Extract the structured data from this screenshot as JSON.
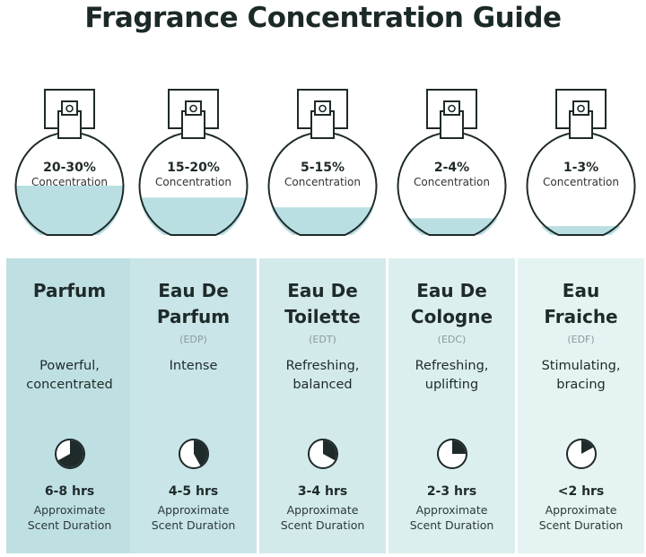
{
  "title": "Fragrance Concentration Guide",
  "concentration_label": "Concentration",
  "approx_label": [
    "Approximate",
    "Scent Duration"
  ],
  "colors": {
    "liquid": "#b9dfe2",
    "ink": "#1f2a2a"
  },
  "types": [
    {
      "name": [
        "Parfum",
        ""
      ],
      "abbr": "",
      "concentration": "20-30%",
      "fill_fraction": 0.5,
      "desc": [
        "Powerful,",
        "concentrated"
      ],
      "duration": "6-8 hrs",
      "clock_fraction": 0.67,
      "bg": "#bfe0e3"
    },
    {
      "name": [
        "Eau De",
        "Parfum"
      ],
      "abbr": "(EDP)",
      "concentration": "15-20%",
      "fill_fraction": 0.38,
      "desc": [
        "Intense",
        ""
      ],
      "duration": "4-5 hrs",
      "clock_fraction": 0.42,
      "bg": "#c9e5e7"
    },
    {
      "name": [
        "Eau De",
        "Toilette"
      ],
      "abbr": "(EDT)",
      "concentration": "5-15%",
      "fill_fraction": 0.28,
      "desc": [
        "Refreshing,",
        "balanced"
      ],
      "duration": "3-4 hrs",
      "clock_fraction": 0.33,
      "bg": "#d3eaeb"
    },
    {
      "name": [
        "Eau De",
        "Cologne"
      ],
      "abbr": "(EDC)",
      "concentration": "2-4%",
      "fill_fraction": 0.17,
      "desc": [
        "Refreshing,",
        "uplifting"
      ],
      "duration": "2-3 hrs",
      "clock_fraction": 0.25,
      "bg": "#dcefef"
    },
    {
      "name": [
        "Eau",
        "Fraiche"
      ],
      "abbr": "(EDF)",
      "concentration": "1-3%",
      "fill_fraction": 0.09,
      "desc": [
        "Stimulating,",
        "bracing"
      ],
      "duration": "<2 hrs",
      "clock_fraction": 0.17,
      "bg": "#e5f3f3"
    }
  ]
}
